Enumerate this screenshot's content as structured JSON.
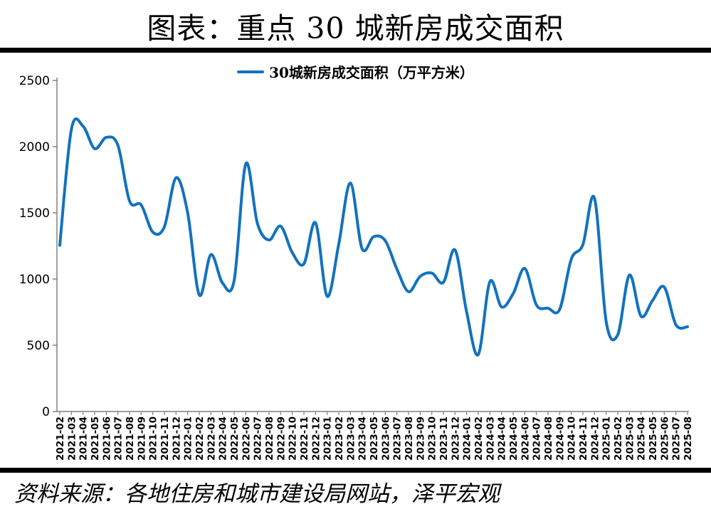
{
  "page": {
    "title": "图表：重点 30 城新房成交面积",
    "source_note": "资料来源：各地住房和城市建设局网站，泽平宏观"
  },
  "legend": {
    "label": "30城新房成交面积（万平方米）"
  },
  "colors": {
    "line": "#1272BE",
    "axis": "#808080",
    "text": "#000000"
  },
  "chart_data": {
    "type": "line",
    "title": "图表：重点 30 城新房成交面积",
    "series_name": "30城新房成交面积（万平方米）",
    "unit": "万平方米",
    "legend_position": "top",
    "grid": false,
    "smooth": true,
    "ylim": [
      0,
      2500
    ],
    "yticks": [
      0,
      500,
      1000,
      1500,
      2000,
      2500
    ],
    "x": [
      "2021-02",
      "2021-03",
      "2021-04",
      "2021-05",
      "2021-06",
      "2021-07",
      "2021-08",
      "2021-09",
      "2021-10",
      "2021-11",
      "2021-12",
      "2022-01",
      "2022-02",
      "2022-03",
      "2022-04",
      "2022-05",
      "2022-06",
      "2022-07",
      "2022-08",
      "2022-09",
      "2022-10",
      "2022-11",
      "2022-12",
      "2023-01",
      "2023-02",
      "2023-03",
      "2023-04",
      "2023-05",
      "2023-06",
      "2023-07",
      "2023-08",
      "2023-09",
      "2023-10",
      "2023-11",
      "2023-12",
      "2024-01",
      "2024-02",
      "2024-03",
      "2024-04",
      "2024-05",
      "2024-06",
      "2024-07",
      "2024-08",
      "2024-09",
      "2024-10",
      "2024-11",
      "2024-12",
      "2025-01",
      "2025-02",
      "2025-03",
      "2025-04",
      "2025-05",
      "2025-06",
      "2025-07",
      "2025-08"
    ],
    "values": [
      1255,
      2130,
      2155,
      1985,
      2070,
      2010,
      1590,
      1560,
      1355,
      1395,
      1765,
      1500,
      880,
      1185,
      970,
      990,
      1870,
      1420,
      1295,
      1400,
      1200,
      1115,
      1425,
      870,
      1265,
      1725,
      1230,
      1320,
      1290,
      1075,
      905,
      1020,
      1045,
      975,
      1220,
      750,
      430,
      980,
      790,
      890,
      1080,
      805,
      780,
      770,
      1150,
      1260,
      1610,
      680,
      580,
      1030,
      720,
      840,
      940,
      655,
      640
    ]
  }
}
